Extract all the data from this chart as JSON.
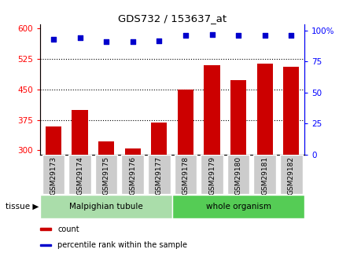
{
  "title": "GDS732 / 153637_at",
  "categories": [
    "GSM29173",
    "GSM29174",
    "GSM29175",
    "GSM29176",
    "GSM29177",
    "GSM29178",
    "GSM29179",
    "GSM29180",
    "GSM29181",
    "GSM29182"
  ],
  "bar_values": [
    358,
    400,
    322,
    305,
    368,
    450,
    510,
    473,
    513,
    505
  ],
  "percentile_values": [
    93,
    94,
    91,
    91,
    92,
    96,
    97,
    96,
    96,
    96
  ],
  "bar_color": "#cc0000",
  "dot_color": "#0000cc",
  "ylim_left": [
    290,
    610
  ],
  "ylim_right": [
    0,
    105
  ],
  "yticks_left": [
    300,
    375,
    450,
    525,
    600
  ],
  "yticks_right": [
    0,
    25,
    50,
    75,
    100
  ],
  "grid_values": [
    375,
    450,
    525
  ],
  "tissue_groups": [
    {
      "label": "Malpighian tubule",
      "start": 0,
      "end": 5,
      "color": "#aaddaa"
    },
    {
      "label": "whole organism",
      "start": 5,
      "end": 10,
      "color": "#55cc55"
    }
  ],
  "legend_items": [
    {
      "label": "count",
      "color": "#cc0000"
    },
    {
      "label": "percentile rank within the sample",
      "color": "#0000cc"
    }
  ],
  "tissue_label": "tissue ▶",
  "tick_bg_color": "#cccccc",
  "bar_width": 0.6
}
